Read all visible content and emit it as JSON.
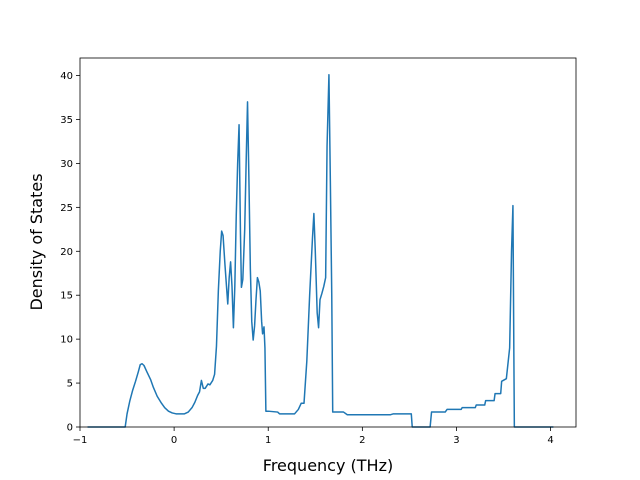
{
  "chart_data": {
    "type": "line",
    "title": "",
    "xlabel": "Frequency (THz)",
    "ylabel": "Density of States",
    "xlim": [
      -1.0,
      4.27
    ],
    "ylim": [
      0,
      42
    ],
    "xticks": [
      -1,
      0,
      1,
      2,
      3,
      4
    ],
    "yticks": [
      0,
      5,
      10,
      15,
      20,
      25,
      30,
      35,
      40
    ],
    "grid": false,
    "legend": "none",
    "series": [
      {
        "color": "#1f77b4",
        "points": [
          [
            -0.92,
            0
          ],
          [
            -0.6,
            0
          ],
          [
            -0.52,
            0
          ],
          [
            -0.5,
            1.5
          ],
          [
            -0.47,
            3
          ],
          [
            -0.44,
            4.2
          ],
          [
            -0.41,
            5.2
          ],
          [
            -0.38,
            6.3
          ],
          [
            -0.36,
            7.1
          ],
          [
            -0.34,
            7.2
          ],
          [
            -0.32,
            7.0
          ],
          [
            -0.29,
            6.3
          ],
          [
            -0.25,
            5.4
          ],
          [
            -0.22,
            4.5
          ],
          [
            -0.18,
            3.5
          ],
          [
            -0.14,
            2.8
          ],
          [
            -0.1,
            2.2
          ],
          [
            -0.06,
            1.8
          ],
          [
            -0.02,
            1.6
          ],
          [
            0.02,
            1.5
          ],
          [
            0.07,
            1.5
          ],
          [
            0.11,
            1.5
          ],
          [
            0.15,
            1.7
          ],
          [
            0.19,
            2.2
          ],
          [
            0.22,
            2.8
          ],
          [
            0.25,
            3.6
          ],
          [
            0.27,
            4.0
          ],
          [
            0.29,
            5.3
          ],
          [
            0.31,
            4.4
          ],
          [
            0.33,
            4.4
          ],
          [
            0.36,
            4.9
          ],
          [
            0.38,
            4.8
          ],
          [
            0.41,
            5.3
          ],
          [
            0.43,
            6.0
          ],
          [
            0.45,
            9.2
          ],
          [
            0.47,
            15.5
          ],
          [
            0.49,
            20.0
          ],
          [
            0.505,
            22.3
          ],
          [
            0.52,
            21.8
          ],
          [
            0.54,
            18.5
          ],
          [
            0.56,
            15.5
          ],
          [
            0.57,
            14.0
          ],
          [
            0.585,
            17.0
          ],
          [
            0.6,
            18.8
          ],
          [
            0.615,
            16.0
          ],
          [
            0.63,
            11.3
          ],
          [
            0.645,
            16.0
          ],
          [
            0.66,
            24.0
          ],
          [
            0.675,
            30.0
          ],
          [
            0.69,
            34.4
          ],
          [
            0.705,
            22.0
          ],
          [
            0.715,
            15.9
          ],
          [
            0.73,
            16.8
          ],
          [
            0.75,
            22.5
          ],
          [
            0.765,
            30.0
          ],
          [
            0.78,
            37.0
          ],
          [
            0.795,
            28.0
          ],
          [
            0.81,
            18.0
          ],
          [
            0.825,
            12.0
          ],
          [
            0.84,
            9.9
          ],
          [
            0.855,
            11.5
          ],
          [
            0.87,
            14.5
          ],
          [
            0.885,
            17.0
          ],
          [
            0.9,
            16.5
          ],
          [
            0.915,
            15.5
          ],
          [
            0.93,
            12.0
          ],
          [
            0.94,
            10.6
          ],
          [
            0.955,
            11.4
          ],
          [
            0.965,
            9.0
          ],
          [
            0.975,
            1.8
          ],
          [
            1.0,
            1.8
          ],
          [
            1.1,
            1.7
          ],
          [
            1.12,
            1.5
          ],
          [
            1.2,
            1.5
          ],
          [
            1.28,
            1.5
          ],
          [
            1.32,
            2.0
          ],
          [
            1.35,
            2.7
          ],
          [
            1.38,
            2.7
          ],
          [
            1.41,
            7.5
          ],
          [
            1.44,
            15.0
          ],
          [
            1.47,
            21.5
          ],
          [
            1.485,
            24.3
          ],
          [
            1.5,
            20.0
          ],
          [
            1.52,
            13.0
          ],
          [
            1.535,
            11.3
          ],
          [
            1.55,
            14.5
          ],
          [
            1.57,
            15.2
          ],
          [
            1.59,
            16.0
          ],
          [
            1.61,
            17.0
          ],
          [
            1.625,
            32.0
          ],
          [
            1.645,
            40.1
          ],
          [
            1.66,
            28.0
          ],
          [
            1.675,
            15.0
          ],
          [
            1.685,
            1.7
          ],
          [
            1.7,
            1.7
          ],
          [
            1.8,
            1.7
          ],
          [
            1.84,
            1.4
          ],
          [
            2.0,
            1.4
          ],
          [
            2.3,
            1.4
          ],
          [
            2.33,
            1.5
          ],
          [
            2.52,
            1.5
          ],
          [
            2.53,
            0
          ],
          [
            2.72,
            0
          ],
          [
            2.735,
            1.7
          ],
          [
            2.88,
            1.7
          ],
          [
            2.9,
            2.0
          ],
          [
            3.05,
            2.0
          ],
          [
            3.06,
            2.2
          ],
          [
            3.2,
            2.2
          ],
          [
            3.21,
            2.5
          ],
          [
            3.3,
            2.5
          ],
          [
            3.31,
            3.0
          ],
          [
            3.4,
            3.0
          ],
          [
            3.41,
            3.8
          ],
          [
            3.47,
            3.8
          ],
          [
            3.48,
            5.2
          ],
          [
            3.53,
            5.5
          ],
          [
            3.565,
            9.0
          ],
          [
            3.585,
            20.0
          ],
          [
            3.6,
            25.2
          ],
          [
            3.61,
            8.0
          ],
          [
            3.615,
            0
          ],
          [
            3.8,
            0
          ],
          [
            4.03,
            0
          ]
        ]
      }
    ]
  }
}
